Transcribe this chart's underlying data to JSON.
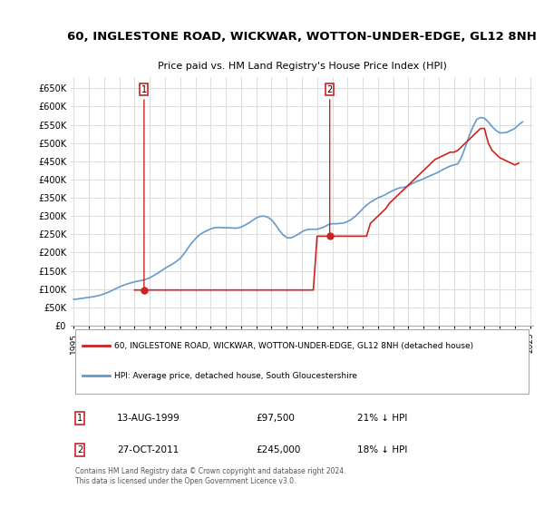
{
  "title": "60, INGLESTONE ROAD, WICKWAR, WOTTON-UNDER-EDGE, GL12 8NH",
  "subtitle": "Price paid vs. HM Land Registry's House Price Index (HPI)",
  "ylim": [
    0,
    680000
  ],
  "yticks": [
    0,
    50000,
    100000,
    150000,
    200000,
    250000,
    300000,
    350000,
    400000,
    450000,
    500000,
    550000,
    600000,
    650000
  ],
  "background_color": "#ffffff",
  "grid_color": "#dddddd",
  "hpi_color": "#6699cc",
  "price_color": "#cc2222",
  "sale1_date": "13-AUG-1999",
  "sale1_price": 97500,
  "sale1_hpi_pct": "21% ↓ HPI",
  "sale2_date": "27-OCT-2011",
  "sale2_price": 245000,
  "sale2_hpi_pct": "18% ↓ HPI",
  "legend_label_price": "60, INGLESTONE ROAD, WICKWAR, WOTTON-UNDER-EDGE, GL12 8NH (detached house)",
  "legend_label_hpi": "HPI: Average price, detached house, South Gloucestershire",
  "footnote": "Contains HM Land Registry data © Crown copyright and database right 2024.\nThis data is licensed under the Open Government Licence v3.0.",
  "hpi_x": [
    1995.0,
    1995.25,
    1995.5,
    1995.75,
    1996.0,
    1996.25,
    1996.5,
    1996.75,
    1997.0,
    1997.25,
    1997.5,
    1997.75,
    1998.0,
    1998.25,
    1998.5,
    1998.75,
    1999.0,
    1999.25,
    1999.5,
    1999.75,
    2000.0,
    2000.25,
    2000.5,
    2000.75,
    2001.0,
    2001.25,
    2001.5,
    2001.75,
    2002.0,
    2002.25,
    2002.5,
    2002.75,
    2003.0,
    2003.25,
    2003.5,
    2003.75,
    2004.0,
    2004.25,
    2004.5,
    2004.75,
    2005.0,
    2005.25,
    2005.5,
    2005.75,
    2006.0,
    2006.25,
    2006.5,
    2006.75,
    2007.0,
    2007.25,
    2007.5,
    2007.75,
    2008.0,
    2008.25,
    2008.5,
    2008.75,
    2009.0,
    2009.25,
    2009.5,
    2009.75,
    2010.0,
    2010.25,
    2010.5,
    2010.75,
    2011.0,
    2011.25,
    2011.5,
    2011.75,
    2012.0,
    2012.25,
    2012.5,
    2012.75,
    2013.0,
    2013.25,
    2013.5,
    2013.75,
    2014.0,
    2014.25,
    2014.5,
    2014.75,
    2015.0,
    2015.25,
    2015.5,
    2015.75,
    2016.0,
    2016.25,
    2016.5,
    2016.75,
    2017.0,
    2017.25,
    2017.5,
    2017.75,
    2018.0,
    2018.25,
    2018.5,
    2018.75,
    2019.0,
    2019.25,
    2019.5,
    2019.75,
    2020.0,
    2020.25,
    2020.5,
    2020.75,
    2021.0,
    2021.25,
    2021.5,
    2021.75,
    2022.0,
    2022.25,
    2022.5,
    2022.75,
    2023.0,
    2023.25,
    2023.5,
    2023.75,
    2024.0,
    2024.25,
    2024.5
  ],
  "hpi_y": [
    72000,
    73000,
    74500,
    76000,
    77500,
    79000,
    81000,
    83500,
    87000,
    91000,
    96000,
    101000,
    106000,
    110000,
    114000,
    117000,
    120000,
    122000,
    124000,
    127000,
    131000,
    137000,
    143000,
    150000,
    157000,
    163000,
    169000,
    176000,
    184000,
    197000,
    212000,
    226000,
    238000,
    248000,
    255000,
    260000,
    265000,
    268000,
    269000,
    268000,
    268000,
    268000,
    267000,
    267000,
    270000,
    275000,
    281000,
    288000,
    295000,
    299000,
    300000,
    297000,
    290000,
    277000,
    262000,
    249000,
    241000,
    240000,
    244000,
    250000,
    257000,
    262000,
    264000,
    264000,
    264000,
    267000,
    271000,
    277000,
    279000,
    279000,
    280000,
    281000,
    285000,
    291000,
    299000,
    309000,
    320000,
    330000,
    338000,
    344000,
    350000,
    354000,
    359000,
    365000,
    370000,
    375000,
    378000,
    379000,
    383000,
    389000,
    394000,
    398000,
    402000,
    407000,
    412000,
    416000,
    421000,
    427000,
    432000,
    437000,
    440000,
    443000,
    462000,
    490000,
    520000,
    545000,
    565000,
    570000,
    568000,
    558000,
    545000,
    535000,
    528000,
    528000,
    530000,
    535000,
    540000,
    550000,
    558000
  ],
  "price_x": [
    1999.0,
    1999.25,
    1999.5,
    1999.75,
    2000.0,
    2000.25,
    2000.5,
    2000.75,
    2001.0,
    2001.25,
    2001.5,
    2001.75,
    2002.0,
    2002.25,
    2002.5,
    2002.75,
    2003.0,
    2003.25,
    2003.5,
    2003.75,
    2004.0,
    2004.25,
    2004.5,
    2004.75,
    2005.0,
    2005.25,
    2005.5,
    2005.75,
    2006.0,
    2006.25,
    2006.5,
    2006.75,
    2007.0,
    2007.25,
    2007.5,
    2007.75,
    2008.0,
    2008.25,
    2008.5,
    2008.75,
    2009.0,
    2009.25,
    2009.5,
    2009.75,
    2010.0,
    2010.25,
    2010.5,
    2010.75,
    2011.0,
    2011.25,
    2011.5,
    2011.75,
    2012.0,
    2012.25,
    2012.5,
    2012.75,
    2013.0,
    2013.25,
    2013.5,
    2013.75,
    2014.0,
    2014.25,
    2014.5,
    2014.75,
    2015.0,
    2015.25,
    2015.5,
    2015.75,
    2016.0,
    2016.25,
    2016.5,
    2016.75,
    2017.0,
    2017.25,
    2017.5,
    2017.75,
    2018.0,
    2018.25,
    2018.5,
    2018.75,
    2019.0,
    2019.25,
    2019.5,
    2019.75,
    2020.0,
    2020.25,
    2020.5,
    2020.75,
    2021.0,
    2021.25,
    2021.5,
    2021.75,
    2022.0,
    2022.25,
    2022.5,
    2022.75,
    2023.0,
    2023.25,
    2023.5,
    2023.75,
    2024.0,
    2024.25
  ],
  "price_y": [
    97500,
    97500,
    97500,
    97500,
    97500,
    97500,
    97500,
    97500,
    97500,
    97500,
    97500,
    97500,
    97500,
    97500,
    97500,
    97500,
    97500,
    97500,
    97500,
    97500,
    97500,
    97500,
    97500,
    97500,
    97500,
    97500,
    97500,
    97500,
    97500,
    97500,
    97500,
    97500,
    97500,
    97500,
    97500,
    97500,
    97500,
    97500,
    97500,
    97500,
    97500,
    97500,
    97500,
    97500,
    97500,
    97500,
    97500,
    97500,
    245000,
    245000,
    245000,
    245000,
    245000,
    245000,
    245000,
    245000,
    245000,
    245000,
    245000,
    245000,
    245000,
    245000,
    280000,
    290000,
    300000,
    310000,
    320000,
    335000,
    345000,
    355000,
    365000,
    375000,
    385000,
    395000,
    405000,
    415000,
    425000,
    435000,
    445000,
    455000,
    460000,
    465000,
    470000,
    475000,
    475000,
    480000,
    490000,
    500000,
    510000,
    520000,
    530000,
    540000,
    540000,
    500000,
    480000,
    470000,
    460000,
    455000,
    450000,
    445000,
    440000,
    445000
  ],
  "sale1_x": 1999.62,
  "sale1_y": 97500,
  "sale2_x": 2011.83,
  "sale2_y": 245000,
  "xtick_years": [
    1995,
    1996,
    1997,
    1998,
    1999,
    2000,
    2001,
    2002,
    2003,
    2004,
    2005,
    2006,
    2007,
    2008,
    2009,
    2010,
    2011,
    2012,
    2013,
    2014,
    2015,
    2016,
    2017,
    2018,
    2019,
    2020,
    2021,
    2022,
    2023,
    2024,
    2025
  ]
}
